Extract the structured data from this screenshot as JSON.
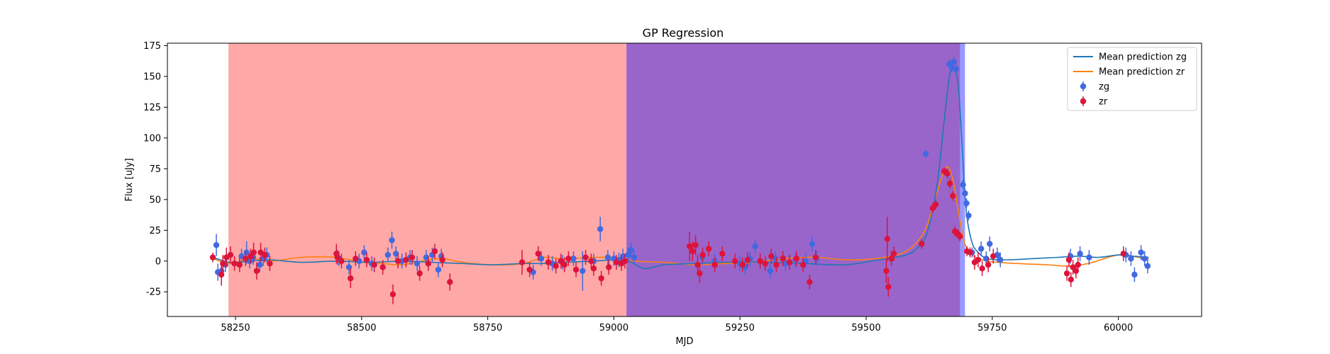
{
  "chart_data": {
    "type": "scatter",
    "title": "GP Regression",
    "xlabel": "MJD",
    "ylabel": "Flux [uJy]",
    "xlim": [
      58115,
      60165
    ],
    "ylim": [
      -45,
      177
    ],
    "xticks": [
      58250,
      58500,
      58750,
      59000,
      59250,
      59500,
      59750,
      60000
    ],
    "yticks": [
      -25,
      0,
      25,
      50,
      75,
      100,
      125,
      150,
      175
    ],
    "grid": false,
    "legend_position": "top-right",
    "legend": [
      {
        "label": "Mean prediction zg",
        "kind": "line",
        "color": "#1f77b4"
      },
      {
        "label": "Mean prediction zr",
        "kind": "line",
        "color": "#ff7f0e"
      },
      {
        "label": "zg",
        "kind": "errorbar",
        "color": "#4169e1"
      },
      {
        "label": "zr",
        "kind": "errorbar",
        "color": "#dc143c"
      }
    ],
    "shaded_regions": [
      {
        "x0": 58236,
        "x1": 59686,
        "color": "#ff0000",
        "alpha": 0.34
      },
      {
        "x0": 59025,
        "x1": 59696,
        "color": "#0000ff",
        "alpha": 0.4
      }
    ],
    "series": [
      {
        "name": "zg",
        "type": "errorbar",
        "color": "#4169e1",
        "points": [
          [
            58212,
            13,
            9
          ],
          [
            58215,
            -9,
            7
          ],
          [
            58222,
            -8,
            6
          ],
          [
            58230,
            -3,
            6
          ],
          [
            58262,
            4,
            6
          ],
          [
            58272,
            7,
            9
          ],
          [
            58278,
            0,
            6
          ],
          [
            58285,
            3,
            6
          ],
          [
            58298,
            -3,
            6
          ],
          [
            58305,
            2,
            6
          ],
          [
            58312,
            5,
            6
          ],
          [
            58455,
            2,
            6
          ],
          [
            58475,
            -5,
            6
          ],
          [
            58495,
            0,
            6
          ],
          [
            58505,
            7,
            6
          ],
          [
            58520,
            -2,
            6
          ],
          [
            58552,
            5,
            6
          ],
          [
            58560,
            17,
            7
          ],
          [
            58568,
            6,
            6
          ],
          [
            58580,
            0,
            6
          ],
          [
            58596,
            3,
            6
          ],
          [
            58610,
            -2,
            6
          ],
          [
            58628,
            3,
            6
          ],
          [
            58640,
            5,
            6
          ],
          [
            58652,
            -7,
            6
          ],
          [
            58658,
            4,
            6
          ],
          [
            58840,
            -9,
            6
          ],
          [
            58856,
            2,
            6
          ],
          [
            58878,
            -2,
            6
          ],
          [
            58898,
            -1,
            6
          ],
          [
            58920,
            2,
            6
          ],
          [
            58938,
            -8,
            16
          ],
          [
            58960,
            0,
            6
          ],
          [
            58973,
            26,
            10
          ],
          [
            58988,
            3,
            6
          ],
          [
            59000,
            2,
            6
          ],
          [
            59010,
            1,
            6
          ],
          [
            59018,
            4,
            6
          ],
          [
            59028,
            5,
            6
          ],
          [
            59034,
            9,
            6
          ],
          [
            59040,
            3,
            6
          ],
          [
            59175,
            3,
            6
          ],
          [
            59200,
            0,
            6
          ],
          [
            59250,
            -2,
            6
          ],
          [
            59260,
            -5,
            6
          ],
          [
            59270,
            2,
            6
          ],
          [
            59280,
            12,
            6
          ],
          [
            59290,
            0,
            6
          ],
          [
            59310,
            -8,
            6
          ],
          [
            59320,
            2,
            6
          ],
          [
            59340,
            -2,
            6
          ],
          [
            59360,
            1,
            6
          ],
          [
            59380,
            0,
            6
          ],
          [
            59393,
            14,
            6
          ],
          [
            59402,
            2,
            6
          ],
          [
            59618,
            87,
            3
          ],
          [
            59665,
            160,
            4
          ],
          [
            59670,
            157,
            4
          ],
          [
            59674,
            162,
            4
          ],
          [
            59678,
            156,
            4
          ],
          [
            59692,
            62,
            4
          ],
          [
            59696,
            55,
            4
          ],
          [
            59699,
            47,
            4
          ],
          [
            59703,
            37,
            4
          ],
          [
            59710,
            7,
            4
          ],
          [
            59728,
            10,
            6
          ],
          [
            59738,
            2,
            6
          ],
          [
            59745,
            14,
            6
          ],
          [
            59760,
            5,
            6
          ],
          [
            59766,
            1,
            6
          ],
          [
            59905,
            4,
            6
          ],
          [
            59924,
            6,
            6
          ],
          [
            59942,
            3,
            6
          ],
          [
            60015,
            5,
            6
          ],
          [
            60025,
            2,
            6
          ],
          [
            60032,
            -11,
            6
          ],
          [
            60045,
            7,
            6
          ],
          [
            60052,
            2,
            6
          ],
          [
            60058,
            -4,
            6
          ]
        ]
      },
      {
        "name": "zr",
        "type": "errorbar",
        "color": "#dc143c",
        "points": [
          [
            58205,
            3,
            4
          ],
          [
            58222,
            -11,
            9
          ],
          [
            58225,
            -2,
            7
          ],
          [
            58232,
            3,
            8
          ],
          [
            58240,
            5,
            7
          ],
          [
            58248,
            -2,
            6
          ],
          [
            58258,
            -3,
            6
          ],
          [
            58270,
            2,
            6
          ],
          [
            58280,
            4,
            6
          ],
          [
            58286,
            7,
            8
          ],
          [
            58292,
            -8,
            7
          ],
          [
            58300,
            7,
            8
          ],
          [
            58308,
            5,
            6
          ],
          [
            58318,
            -2,
            6
          ],
          [
            58450,
            6,
            8
          ],
          [
            58452,
            3,
            6
          ],
          [
            58460,
            0,
            6
          ],
          [
            58478,
            -14,
            8
          ],
          [
            58488,
            2,
            6
          ],
          [
            58510,
            1,
            6
          ],
          [
            58525,
            -3,
            6
          ],
          [
            58542,
            -5,
            6
          ],
          [
            58562,
            -27,
            8
          ],
          [
            58572,
            0,
            6
          ],
          [
            58588,
            1,
            6
          ],
          [
            58600,
            3,
            6
          ],
          [
            58615,
            -10,
            6
          ],
          [
            58632,
            -2,
            6
          ],
          [
            58645,
            8,
            6
          ],
          [
            58660,
            1,
            6
          ],
          [
            58675,
            -17,
            7
          ],
          [
            58818,
            -1,
            10
          ],
          [
            58833,
            -7,
            6
          ],
          [
            58850,
            6,
            6
          ],
          [
            58870,
            -1,
            6
          ],
          [
            58885,
            -4,
            6
          ],
          [
            58895,
            0,
            6
          ],
          [
            58902,
            -3,
            6
          ],
          [
            58910,
            2,
            6
          ],
          [
            58925,
            -7,
            6
          ],
          [
            58944,
            3,
            6
          ],
          [
            58955,
            0,
            6
          ],
          [
            58960,
            -6,
            6
          ],
          [
            58975,
            -14,
            6
          ],
          [
            58990,
            -5,
            6
          ],
          [
            59005,
            -1,
            6
          ],
          [
            59015,
            -2,
            6
          ],
          [
            59022,
            0,
            6
          ],
          [
            59150,
            12,
            12
          ],
          [
            59156,
            8,
            8
          ],
          [
            59162,
            13,
            8
          ],
          [
            59166,
            -3,
            8
          ],
          [
            59170,
            -10,
            8
          ],
          [
            59176,
            5,
            6
          ],
          [
            59188,
            10,
            6
          ],
          [
            59200,
            -3,
            6
          ],
          [
            59215,
            6,
            6
          ],
          [
            59240,
            0,
            6
          ],
          [
            59255,
            -3,
            6
          ],
          [
            59265,
            1,
            6
          ],
          [
            59290,
            0,
            6
          ],
          [
            59300,
            -2,
            6
          ],
          [
            59312,
            4,
            6
          ],
          [
            59322,
            -3,
            6
          ],
          [
            59335,
            2,
            6
          ],
          [
            59348,
            -1,
            6
          ],
          [
            59362,
            2,
            6
          ],
          [
            59375,
            -3,
            6
          ],
          [
            59388,
            -17,
            6
          ],
          [
            59400,
            3,
            6
          ],
          [
            59540,
            -8,
            10
          ],
          [
            59542,
            18,
            18
          ],
          [
            59544,
            -21,
            8
          ],
          [
            59550,
            2,
            6
          ],
          [
            59555,
            6,
            6
          ],
          [
            59610,
            14,
            4
          ],
          [
            59632,
            43,
            4
          ],
          [
            59638,
            46,
            4
          ],
          [
            59655,
            73,
            3
          ],
          [
            59661,
            71,
            4
          ],
          [
            59666,
            63,
            4
          ],
          [
            59672,
            53,
            4
          ],
          [
            59676,
            24,
            4
          ],
          [
            59682,
            22,
            4
          ],
          [
            59686,
            20,
            4
          ],
          [
            59700,
            8,
            4
          ],
          [
            59706,
            7,
            4
          ],
          [
            59715,
            -1,
            6
          ],
          [
            59722,
            1,
            6
          ],
          [
            59730,
            -6,
            6
          ],
          [
            59742,
            -3,
            6
          ],
          [
            59752,
            4,
            6
          ],
          [
            59898,
            -10,
            6
          ],
          [
            59902,
            1,
            6
          ],
          [
            59906,
            -15,
            6
          ],
          [
            59910,
            -5,
            6
          ],
          [
            59916,
            -8,
            6
          ],
          [
            59920,
            -3,
            6
          ],
          [
            60010,
            6,
            6
          ]
        ]
      }
    ],
    "mean_zg": {
      "label": "Mean prediction zg",
      "x": [
        58205,
        58240,
        58280,
        58320,
        58380,
        58450,
        58520,
        58580,
        58640,
        58700,
        58760,
        58820,
        58860,
        58900,
        58960,
        59000,
        59030,
        59060,
        59100,
        59160,
        59220,
        59300,
        59380,
        59460,
        59540,
        59580,
        59600,
        59620,
        59640,
        59655,
        59665,
        59670,
        59675,
        59680,
        59685,
        59690,
        59695,
        59700,
        59710,
        59720,
        59740,
        59780,
        59830,
        59880,
        59920,
        59960,
        60000,
        60030,
        60060
      ],
      "y": [
        3,
        -1,
        0,
        1,
        -1,
        0,
        -1,
        0,
        -1,
        -2,
        -3,
        -2,
        -2,
        -1,
        0,
        1,
        0,
        -6,
        -3,
        -2,
        -1,
        -1,
        -2,
        -3,
        2,
        5,
        10,
        22,
        60,
        115,
        150,
        155,
        155,
        150,
        130,
        95,
        60,
        35,
        15,
        8,
        2,
        1,
        2,
        3,
        4,
        3,
        5,
        4,
        3
      ]
    },
    "mean_zr": {
      "label": "Mean prediction zr",
      "x": [
        58205,
        58240,
        58280,
        58320,
        58380,
        58450,
        58500,
        58540,
        58580,
        58620,
        58660,
        58700,
        58760,
        58820,
        58860,
        58900,
        58960,
        59000,
        59040,
        59100,
        59160,
        59220,
        59280,
        59340,
        59400,
        59460,
        59520,
        59560,
        59580,
        59600,
        59620,
        59640,
        59655,
        59665,
        59675,
        59685,
        59695,
        59710,
        59740,
        59800,
        59860,
        59900,
        59940,
        60000,
        60040,
        60060
      ],
      "y": [
        2,
        -2,
        2,
        0,
        3,
        3,
        -1,
        -2,
        -3,
        0,
        2,
        -1,
        -3,
        -2,
        3,
        2,
        3,
        3,
        0,
        -1,
        -3,
        -2,
        -1,
        2,
        3,
        1,
        2,
        5,
        8,
        15,
        28,
        55,
        74,
        75,
        60,
        35,
        15,
        5,
        0,
        -2,
        -3,
        -4,
        -2,
        5,
        3,
        2
      ]
    }
  }
}
